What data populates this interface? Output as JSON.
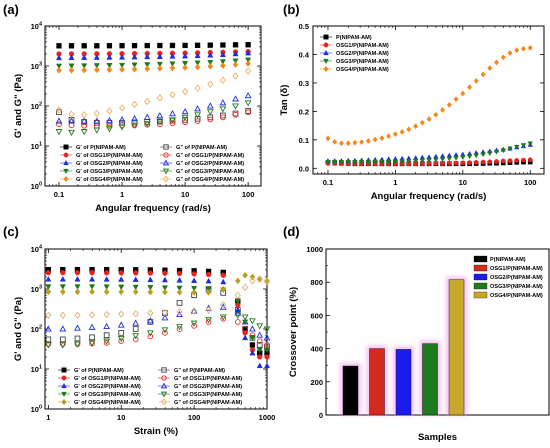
{
  "chart_data": [
    {
      "panel": "(a)",
      "type": "scatter",
      "xlabel": "Angular frequency (rad/s)",
      "ylabel": "G' and G\" (Pa)",
      "xscale": "log",
      "yscale": "log",
      "xlim": [
        0.06,
        160
      ],
      "ylim": [
        1,
        10000
      ],
      "xticks": [
        0.1,
        1,
        10,
        100
      ],
      "xtick_labels": [
        "0.1",
        "1",
        "10",
        "100"
      ],
      "yticks": [
        1,
        10,
        100,
        1000,
        10000
      ],
      "ytick_labels": [
        "10^0",
        "10^1",
        "10^2",
        "10^3",
        "10^4"
      ],
      "legend_position": "bottom",
      "x": [
        0.1,
        0.158,
        0.251,
        0.398,
        0.631,
        1,
        1.58,
        2.51,
        3.98,
        6.31,
        10,
        15.8,
        25.1,
        39.8,
        63.1,
        100
      ],
      "series": [
        {
          "name": "G' of P(NIPAM-AM)",
          "color": "#000000",
          "marker": "square",
          "filled": true,
          "values": [
            3200,
            3200,
            3200,
            3200,
            3210,
            3220,
            3230,
            3240,
            3250,
            3260,
            3270,
            3290,
            3320,
            3350,
            3380,
            3400
          ]
        },
        {
          "name": "G\" of P(NIPAM-AM)",
          "color": "#444444",
          "marker": "square",
          "filled": false,
          "values": [
            70,
            45,
            40,
            38,
            38,
            38,
            39,
            40,
            41,
            43,
            45,
            48,
            52,
            58,
            65,
            75
          ]
        },
        {
          "name": "G' of OSG1/P(NIPAM-AM)",
          "color": "#e8231f",
          "marker": "circle",
          "filled": true,
          "values": [
            2000,
            2000,
            2010,
            2010,
            2020,
            2030,
            2040,
            2050,
            2070,
            2080,
            2100,
            2130,
            2170,
            2200,
            2240,
            2280
          ]
        },
        {
          "name": "G\" of OSG1/P(NIPAM-AM)",
          "color": "#e8231f",
          "marker": "circle",
          "filled": false,
          "values": [
            35,
            33,
            32,
            32,
            32,
            33,
            33,
            34,
            35,
            37,
            39,
            42,
            46,
            52,
            60,
            70
          ]
        },
        {
          "name": "G' of OSG2/P(NIPAM-AM)",
          "color": "#1f2ce0",
          "marker": "triangle",
          "filled": true,
          "values": [
            1600,
            1610,
            1620,
            1630,
            1640,
            1650,
            1670,
            1690,
            1710,
            1740,
            1770,
            1810,
            1860,
            1920,
            2000,
            2100
          ]
        },
        {
          "name": "G\" of OSG2/P(NIPAM-AM)",
          "color": "#1f2ce0",
          "marker": "triangle",
          "filled": false,
          "values": [
            42,
            42,
            42,
            42,
            43,
            45,
            48,
            52,
            57,
            64,
            72,
            85,
            100,
            120,
            150,
            180
          ]
        },
        {
          "name": "G' of OSG3/P(NIPAM-AM)",
          "color": "#1e7a1e",
          "marker": "triangle-down",
          "filled": true,
          "values": [
            1000,
            1010,
            1020,
            1030,
            1040,
            1050,
            1070,
            1090,
            1110,
            1140,
            1170,
            1200,
            1240,
            1290,
            1350,
            1420
          ]
        },
        {
          "name": "G\" of OSG3/P(NIPAM-AM)",
          "color": "#1e7a1e",
          "marker": "triangle-down",
          "filled": false,
          "values": [
            23,
            22,
            23,
            25,
            27,
            30,
            33,
            36,
            40,
            45,
            52,
            60,
            72,
            85,
            100,
            120
          ]
        },
        {
          "name": "G' of OSG4/P(NIPAM-AM)",
          "color": "#f08a1c",
          "marker": "diamond",
          "filled": true,
          "values": [
            780,
            780,
            790,
            800,
            810,
            820,
            830,
            850,
            870,
            890,
            910,
            940,
            980,
            1020,
            1080,
            1150
          ]
        },
        {
          "name": "G\" of OSG4/P(NIPAM-AM)",
          "color": "#f0b060",
          "marker": "diamond",
          "filled": false,
          "values": [
            80,
            62,
            60,
            65,
            75,
            90,
            110,
            130,
            160,
            190,
            230,
            280,
            350,
            440,
            560,
            750
          ]
        }
      ]
    },
    {
      "panel": "(b)",
      "type": "scatter",
      "xlabel": "Angular frequency (rad/s)",
      "ylabel": "Tan (δ)",
      "xscale": "log",
      "xlim": [
        0.06,
        160
      ],
      "ylim": [
        -0.02,
        0.5
      ],
      "xticks": [
        0.1,
        1,
        10,
        100
      ],
      "xtick_labels": [
        "0.1",
        "1",
        "10",
        "100"
      ],
      "yticks": [
        0.0,
        0.1,
        0.2,
        0.3,
        0.4,
        0.5
      ],
      "ytick_labels": [
        "0.0",
        "0.1",
        "0.2",
        "0.3",
        "0.4",
        "0.5"
      ],
      "legend_position": "top-left",
      "x": [
        0.1,
        0.126,
        0.158,
        0.2,
        0.251,
        0.316,
        0.398,
        0.501,
        0.631,
        0.794,
        1,
        1.26,
        1.58,
        2,
        2.51,
        3.16,
        3.98,
        5.01,
        6.31,
        7.94,
        10,
        12.6,
        15.8,
        20,
        25.1,
        31.6,
        39.8,
        50.1,
        63.1,
        79.4,
        100
      ],
      "series": [
        {
          "name": "P(NIPAM-AM)",
          "color": "#000000",
          "marker": "square",
          "values": [
            0.021,
            0.019,
            0.018,
            0.017,
            0.016,
            0.016,
            0.016,
            0.016,
            0.016,
            0.016,
            0.016,
            0.016,
            0.016,
            0.016,
            0.016,
            0.016,
            0.016,
            0.016,
            0.016,
            0.016,
            0.016,
            0.016,
            0.017,
            0.017,
            0.018,
            0.018,
            0.019,
            0.02,
            0.021,
            0.022,
            0.022
          ]
        },
        {
          "name": "OSG1/P(NIPAM-AM)",
          "color": "#e8231f",
          "marker": "circle",
          "values": [
            0.017,
            0.017,
            0.016,
            0.016,
            0.016,
            0.016,
            0.016,
            0.016,
            0.016,
            0.016,
            0.016,
            0.016,
            0.016,
            0.016,
            0.016,
            0.017,
            0.017,
            0.017,
            0.018,
            0.018,
            0.019,
            0.02,
            0.021,
            0.022,
            0.023,
            0.024,
            0.026,
            0.027,
            0.028,
            0.029,
            0.03
          ]
        },
        {
          "name": "OSG2/P(NIPAM-AM)",
          "color": "#1f2ce0",
          "marker": "triangle",
          "values": [
            0.026,
            0.026,
            0.026,
            0.027,
            0.027,
            0.028,
            0.029,
            0.03,
            0.031,
            0.032,
            0.033,
            0.034,
            0.035,
            0.036,
            0.038,
            0.039,
            0.041,
            0.043,
            0.045,
            0.047,
            0.049,
            0.051,
            0.054,
            0.057,
            0.06,
            0.063,
            0.066,
            0.07,
            0.074,
            0.078,
            0.083
          ]
        },
        {
          "name": "OSG3/P(NIPAM-AM)",
          "color": "#1e7a1e",
          "marker": "triangle-down",
          "values": [
            0.022,
            0.022,
            0.022,
            0.022,
            0.022,
            0.022,
            0.022,
            0.022,
            0.023,
            0.023,
            0.024,
            0.025,
            0.026,
            0.027,
            0.028,
            0.029,
            0.03,
            0.032,
            0.034,
            0.036,
            0.039,
            0.042,
            0.045,
            0.049,
            0.053,
            0.058,
            0.063,
            0.069,
            0.075,
            0.081,
            0.087
          ]
        },
        {
          "name": "OSG4/P(NIPAM-AM)",
          "color": "#f08a1c",
          "marker": "diamond",
          "values": [
            0.105,
            0.093,
            0.088,
            0.088,
            0.09,
            0.092,
            0.096,
            0.101,
            0.106,
            0.113,
            0.12,
            0.128,
            0.137,
            0.148,
            0.16,
            0.173,
            0.188,
            0.205,
            0.223,
            0.243,
            0.263,
            0.285,
            0.307,
            0.33,
            0.352,
            0.372,
            0.39,
            0.405,
            0.415,
            0.42,
            0.423
          ]
        }
      ]
    },
    {
      "panel": "(c)",
      "type": "scatter",
      "xlabel": "Strain (%)",
      "ylabel": "G' and G\" (Pa)",
      "xscale": "log",
      "yscale": "log",
      "xlim": [
        0.9,
        1000
      ],
      "ylim": [
        1,
        10000
      ],
      "xticks": [
        1,
        10,
        100,
        1000
      ],
      "xtick_labels": [
        "1",
        "10",
        "100",
        "1000"
      ],
      "yticks": [
        1,
        10,
        100,
        1000,
        10000
      ],
      "ytick_labels": [
        "10^0",
        "10^1",
        "10^2",
        "10^3",
        "10^4"
      ],
      "legend_position": "bottom",
      "x": [
        1,
        1.58,
        2.51,
        3.98,
        6.31,
        10,
        15.8,
        25.1,
        39.8,
        63.1,
        100,
        158,
        251,
        398,
        501,
        631,
        794,
        1000
      ],
      "series": [
        {
          "name": "G' of P(NIPAM-AM)",
          "color": "#000000",
          "marker": "square",
          "filled": true,
          "values": [
            3050,
            3050,
            3050,
            3050,
            3040,
            3030,
            3020,
            3000,
            2950,
            2900,
            2850,
            2750,
            2600,
            500,
            100,
            40,
            25,
            25
          ]
        },
        {
          "name": "G\" of P(NIPAM-AM)",
          "color": "#444444",
          "marker": "square",
          "filled": false,
          "values": [
            55,
            55,
            58,
            62,
            70,
            80,
            100,
            150,
            250,
            450,
            700,
            1000,
            800,
            300,
            100,
            60,
            40,
            35
          ]
        },
        {
          "name": "G' of OSG1/P(NIPAM-AM)",
          "color": "#e8231f",
          "marker": "circle",
          "filled": true,
          "values": [
            2550,
            2550,
            2550,
            2550,
            2540,
            2530,
            2520,
            2500,
            2470,
            2430,
            2380,
            2300,
            2200,
            400,
            80,
            30,
            20,
            20
          ]
        },
        {
          "name": "G\" of OSG1/P(NIPAM-AM)",
          "color": "#e8231f",
          "marker": "circle",
          "filled": false,
          "values": [
            42,
            42,
            42,
            43,
            45,
            50,
            55,
            65,
            80,
            100,
            120,
            150,
            180,
            150,
            100,
            70,
            50,
            40
          ]
        },
        {
          "name": "G' of OSG2/P(NIPAM-AM)",
          "color": "#1f2ce0",
          "marker": "triangle",
          "filled": true,
          "values": [
            1750,
            1750,
            1750,
            1750,
            1740,
            1730,
            1720,
            1700,
            1680,
            1650,
            1620,
            1580,
            1500,
            300,
            60,
            25,
            12,
            12
          ]
        },
        {
          "name": "G\" of OSG2/P(NIPAM-AM)",
          "color": "#1f2ce0",
          "marker": "triangle",
          "filled": false,
          "values": [
            100,
            100,
            105,
            110,
            115,
            125,
            140,
            160,
            190,
            230,
            280,
            330,
            350,
            250,
            150,
            100,
            70,
            60
          ]
        },
        {
          "name": "G' of OSG3/P(NIPAM-AM)",
          "color": "#1e7a1e",
          "marker": "triangle-down",
          "filled": true,
          "values": [
            1150,
            1150,
            1150,
            1150,
            1140,
            1130,
            1120,
            1100,
            1080,
            1060,
            1040,
            1000,
            950,
            500,
            150,
            60,
            30,
            30
          ]
        },
        {
          "name": "G\" of OSG3/P(NIPAM-AM)",
          "color": "#1e7a1e",
          "marker": "triangle-down",
          "filled": false,
          "values": [
            40,
            40,
            42,
            45,
            50,
            58,
            68,
            80,
            95,
            115,
            140,
            170,
            200,
            220,
            200,
            160,
            120,
            100
          ]
        },
        {
          "name": "G' of OSG4/P(NIPAM-AM)",
          "color": "#b8a020",
          "marker": "diamond",
          "filled": true,
          "values": [
            850,
            850,
            850,
            850,
            850,
            850,
            845,
            840,
            835,
            830,
            825,
            820,
            1000,
            1600,
            2200,
            2000,
            1700,
            1500
          ]
        },
        {
          "name": "G\" of OSG4/P(NIPAM-AM)",
          "color": "#e0b070",
          "marker": "diamond",
          "filled": false,
          "values": [
            220,
            220,
            220,
            225,
            230,
            235,
            240,
            250,
            260,
            270,
            280,
            300,
            400,
            700,
            1100,
            1600,
            1800,
            1600
          ]
        }
      ]
    },
    {
      "panel": "(d)",
      "type": "bar",
      "xlabel": "Samples",
      "ylabel": "Crossover point (%)",
      "ylim": [
        0,
        1000
      ],
      "yticks": [
        0,
        200,
        400,
        600,
        800,
        1000
      ],
      "ytick_labels": [
        "0",
        "200",
        "400",
        "600",
        "800",
        "1000"
      ],
      "legend_position": "top-right",
      "categories": [
        "P(NIPAM-AM)",
        "OSG1/P(NIPAM-AM)",
        "OSG2/P(NIPAM-AM)",
        "OSG3/P(NIPAM-AM)",
        "OSG4/P(NIPAM-AM)"
      ],
      "values": [
        295,
        400,
        395,
        430,
        815
      ],
      "colors": [
        "#000000",
        "#d42b1e",
        "#1b1bf0",
        "#1e7a1e",
        "#c8a82a"
      ]
    }
  ]
}
